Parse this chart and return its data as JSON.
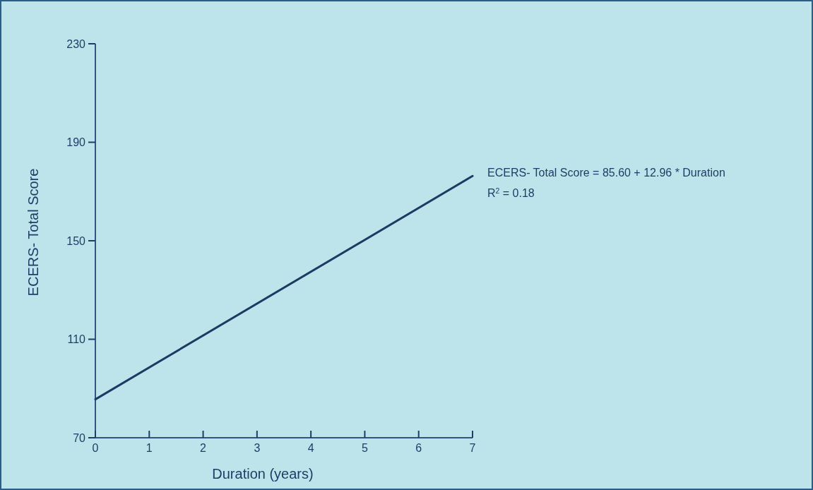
{
  "chart_data": {
    "type": "line",
    "xlabel": "Duration (years)",
    "ylabel": "ECERS- Total Score",
    "x": [
      0,
      7
    ],
    "series": [
      {
        "color": "#1d3a63",
        "values": [
          85.6,
          176.3
        ]
      }
    ],
    "xlim": [
      0,
      7
    ],
    "xticks": [
      0,
      1,
      2,
      3,
      4,
      5,
      6,
      7
    ],
    "ylim": [
      70,
      230
    ],
    "yticks": [
      70,
      110,
      150,
      190,
      230
    ],
    "grid": false,
    "marker": "none",
    "line_style": "solid",
    "annotations": [
      "ECERS- Total Score = 85.60 + 12.96 * Duration",
      "R$^{2}$ = 0.18"
    ]
  }
}
